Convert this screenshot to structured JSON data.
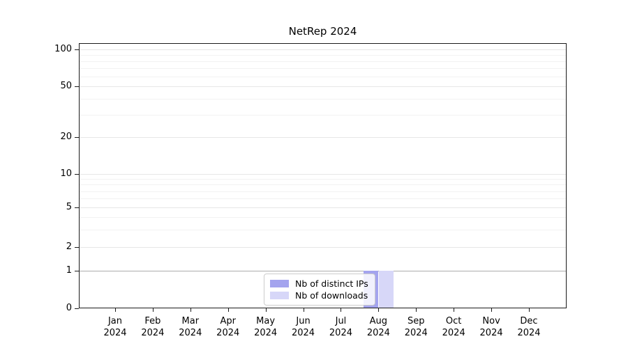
{
  "title": "NetRep 2024",
  "legend": {
    "items": [
      {
        "label": "Nb of distinct IPs",
        "color": "#a4a4ee"
      },
      {
        "label": "Nb of downloads",
        "color": "#d7d7f8"
      }
    ]
  },
  "chart_data": {
    "type": "bar",
    "title": "NetRep 2024",
    "categories": [
      "Jan 2024",
      "Feb 2024",
      "Mar 2024",
      "Apr 2024",
      "May 2024",
      "Jun 2024",
      "Jul 2024",
      "Aug 2024",
      "Sep 2024",
      "Oct 2024",
      "Nov 2024",
      "Dec 2024"
    ],
    "series": [
      {
        "name": "Nb of distinct IPs",
        "color": "#a4a4ee",
        "values": [
          0,
          0,
          0,
          0,
          0,
          0,
          0,
          1,
          0,
          0,
          0,
          0
        ]
      },
      {
        "name": "Nb of downloads",
        "color": "#d7d7f8",
        "values": [
          0,
          0,
          0,
          0,
          0,
          0,
          0,
          1,
          0,
          0,
          0,
          0
        ]
      }
    ],
    "xlabel": "",
    "ylabel": "",
    "ylim": [
      0,
      100
    ],
    "yscale": "symlog",
    "y_ticks": [
      0,
      1,
      2,
      5,
      10,
      20,
      50,
      100
    ],
    "y_tick_labels": [
      "0",
      "1",
      "2",
      "5",
      "10",
      "20",
      "50",
      "100"
    ],
    "y_minor_gridlines": [
      3,
      4,
      6,
      7,
      8,
      9,
      30,
      40,
      60,
      70,
      80,
      90
    ],
    "grid": true,
    "legend_position": "lower center"
  }
}
